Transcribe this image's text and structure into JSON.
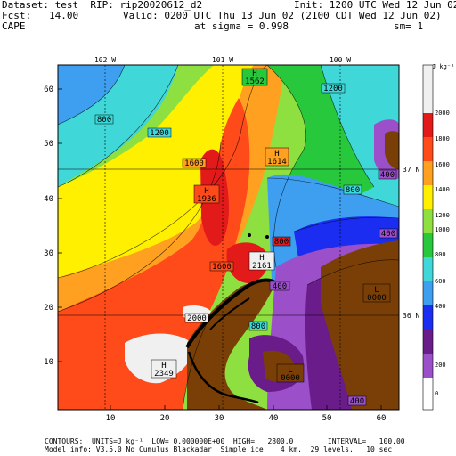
{
  "header": {
    "dataset": "Dataset: test  RIP: rip20020612_d2",
    "init": "Init: 1200 UTC Wed 12 Jun 02",
    "fcst": "Fcst:   14.00",
    "valid": "Valid: 0200 UTC Thu 13 Jun 02 (2100 CDT Wed 12 Jun 02)",
    "field": "CAPE",
    "sigma": "at sigma = 0.998",
    "sm": "sm= 1"
  },
  "map": {
    "x_ticks": [
      "10",
      "20",
      "30",
      "40",
      "50",
      "60"
    ],
    "y_ticks": [
      "60",
      "50",
      "40",
      "30",
      "20",
      "10"
    ],
    "lon_labels": [
      "102 W",
      "101 W",
      "100 W"
    ],
    "lat_labels": [
      "37 N",
      "36 N"
    ],
    "contour_labels": [
      {
        "id": "c1",
        "text": "800"
      },
      {
        "id": "c2",
        "text": "1200"
      },
      {
        "id": "c3",
        "text": "1600"
      },
      {
        "id": "c4",
        "text": "1200"
      },
      {
        "id": "c5",
        "text": "800"
      },
      {
        "id": "c6",
        "text": "400"
      },
      {
        "id": "c7",
        "text": "400"
      },
      {
        "id": "c8",
        "text": "1600"
      },
      {
        "id": "c9",
        "text": "2000"
      },
      {
        "id": "c10",
        "text": "400"
      },
      {
        "id": "c11",
        "text": "800"
      },
      {
        "id": "c12",
        "text": "400"
      },
      {
        "id": "c13",
        "text": "800"
      }
    ],
    "extrema": [
      {
        "id": "h1",
        "type": "H",
        "value": "1562"
      },
      {
        "id": "h2",
        "type": "H",
        "value": "1614"
      },
      {
        "id": "h3",
        "type": "H",
        "value": "1936"
      },
      {
        "id": "h4",
        "type": "H",
        "value": "2161"
      },
      {
        "id": "h5",
        "type": "H",
        "value": "2349"
      },
      {
        "id": "l1",
        "type": "L",
        "value": "0000"
      },
      {
        "id": "l2",
        "type": "L",
        "value": "0000"
      }
    ],
    "colors": {
      "brown": "#7a3f06",
      "purple_dark": "#6a1c8a",
      "purple": "#9b4fc8",
      "blue": "#1a2df0",
      "lightblue": "#3e9ef0",
      "cyan": "#3fd7d7",
      "green": "#28c83c",
      "lightgreen": "#8ee040",
      "yellow": "#fff000",
      "orange": "#ffa020",
      "redorange": "#ff4a1a",
      "red": "#e21a1a",
      "white": "#f0f0f0"
    }
  },
  "colorbar": {
    "unit": "J kg⁻¹",
    "labels": [
      "2000",
      "1800",
      "1600",
      "1400",
      "1200",
      "1000",
      "800",
      "600",
      "400",
      "200",
      "0"
    ]
  },
  "footer": {
    "line1": "CONTOURS:  UNITS=J kg⁻¹  LOW= 0.000000E+00  HIGH=   2800.0        INTERVAL=   100.00",
    "line2": "Model info: V3.5.0 No Cumulus Blackadar  Simple ice    4 km,  29 levels,   10 sec"
  }
}
